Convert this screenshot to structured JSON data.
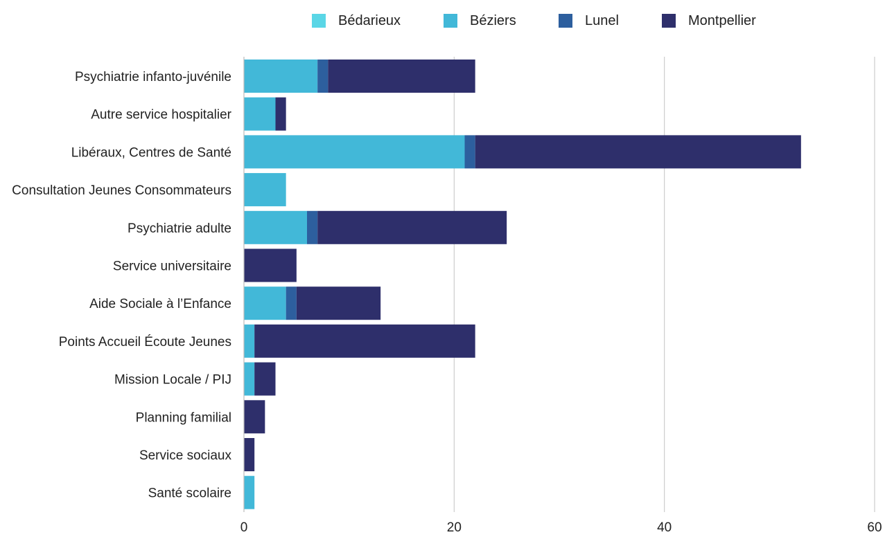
{
  "chart_data": {
    "type": "bar",
    "orientation": "horizontal",
    "stacked": true,
    "categories": [
      "Psychiatrie infanto-juvénile",
      "Autre service hospitalier",
      "Libéraux, Centres de Santé",
      "Consultation Jeunes Consommateurs",
      "Psychiatrie adulte",
      "Service universitaire",
      "Aide Sociale à l’Enfance",
      "Points Accueil Écoute Jeunes",
      "Mission Locale / PIJ",
      "Planning familial",
      "Service sociaux",
      "Santé scolaire"
    ],
    "series": [
      {
        "name": "Bédarieux",
        "color": "#5ad6e6",
        "values": [
          0,
          0,
          0,
          0,
          0,
          0,
          0,
          0,
          0,
          0,
          0,
          0
        ]
      },
      {
        "name": "Béziers",
        "color": "#42b8d8",
        "values": [
          7,
          3,
          21,
          4,
          6,
          0,
          4,
          1,
          1,
          0,
          0,
          1
        ]
      },
      {
        "name": "Lunel",
        "color": "#2d5f9e",
        "values": [
          1,
          0,
          1,
          0,
          1,
          0,
          1,
          0,
          0,
          0,
          0,
          0
        ]
      },
      {
        "name": "Montpellier",
        "color": "#2e2f6b",
        "values": [
          14,
          1,
          31,
          0,
          18,
          5,
          8,
          21,
          2,
          2,
          1,
          0
        ]
      }
    ],
    "xlim": [
      0,
      60
    ],
    "xticks": [
      0,
      20,
      40,
      60
    ],
    "grid": true,
    "legend": "top",
    "title": "",
    "xlabel": "",
    "ylabel": ""
  }
}
